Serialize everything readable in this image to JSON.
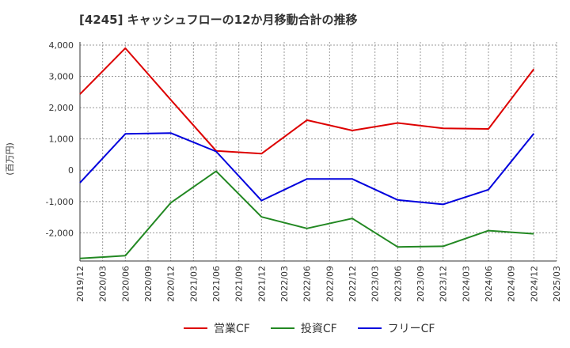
{
  "chart_data": {
    "type": "line",
    "title": "[4245]  キャッシュフローの12か月移動合計の推移",
    "ylabel": "(百万円)",
    "xlabel": "",
    "ylim": [
      -2900,
      4100
    ],
    "yticks": [
      4000,
      3000,
      2000,
      1000,
      0,
      -1000,
      -2000
    ],
    "ytick_labels": [
      "4,000",
      "3,000",
      "2,000",
      "1,000",
      "0",
      "-1,000",
      "-2,000"
    ],
    "categories": [
      "2019/12",
      "2020/03",
      "2020/06",
      "2020/09",
      "2020/12",
      "2021/03",
      "2021/06",
      "2021/09",
      "2021/12",
      "2022/03",
      "2022/06",
      "2022/09",
      "2022/12",
      "2023/03",
      "2023/06",
      "2023/09",
      "2023/12",
      "2024/03",
      "2024/06",
      "2024/09",
      "2024/12",
      "2025/03"
    ],
    "series": [
      {
        "name": "営業CF",
        "color": "#dd0000",
        "x": [
          "2019/12",
          "2020/06",
          "2020/12",
          "2021/06",
          "2021/12",
          "2022/06",
          "2022/12",
          "2023/06",
          "2023/12",
          "2024/06",
          "2024/12"
        ],
        "values": [
          2430,
          3900,
          2250,
          620,
          530,
          1600,
          1270,
          1510,
          1340,
          1320,
          3230
        ]
      },
      {
        "name": "投資CF",
        "color": "#228822",
        "x": [
          "2019/12",
          "2020/06",
          "2020/12",
          "2021/06",
          "2021/12",
          "2022/06",
          "2022/12",
          "2023/06",
          "2023/12",
          "2024/06",
          "2024/12"
        ],
        "values": [
          -2820,
          -2730,
          -1040,
          -30,
          -1490,
          -1860,
          -1540,
          -2450,
          -2430,
          -1930,
          -2030
        ]
      },
      {
        "name": "フリーCF",
        "color": "#0000dd",
        "x": [
          "2019/12",
          "2020/06",
          "2020/12",
          "2021/06",
          "2021/12",
          "2022/06",
          "2022/12",
          "2023/06",
          "2023/12",
          "2024/06",
          "2024/12"
        ],
        "values": [
          -400,
          1160,
          1190,
          600,
          -970,
          -280,
          -280,
          -950,
          -1090,
          -620,
          1170
        ]
      }
    ],
    "grid": true,
    "legend_position": "bottom"
  }
}
